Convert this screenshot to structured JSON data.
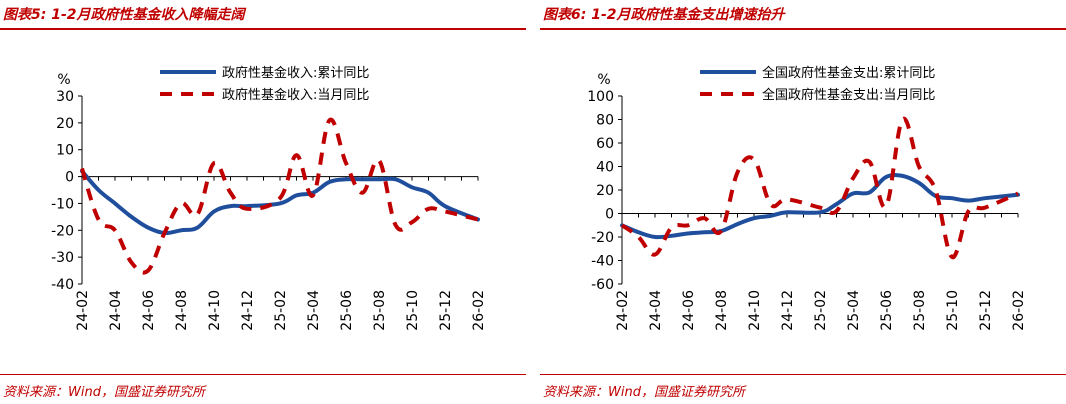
{
  "charts": [
    {
      "title": "图表5: 1-2月政府性基金收入降幅走阔",
      "source": "资料来源：Wind，国盛证券研究所"
    },
    {
      "title": "图表6: 1-2月政府性基金支出增速抬升",
      "source": "资料来源：Wind，国盛证券研究所"
    }
  ],
  "colors": {
    "accent": "#c00000",
    "series_cumulative": "#1f4e9c",
    "series_monthly": "#c00000"
  },
  "chart_data": [
    {
      "type": "line",
      "ylabel": "%",
      "ylim": [
        -40,
        30
      ],
      "yticks": [
        30,
        20,
        10,
        0,
        -10,
        -20,
        -30,
        -40
      ],
      "x": [
        "24-02",
        "24-03",
        "24-04",
        "24-05",
        "24-06",
        "24-07",
        "24-08",
        "24-09",
        "24-10",
        "24-11",
        "24-12",
        "25-01",
        "25-02",
        "25-03",
        "25-04",
        "25-05",
        "25-06",
        "25-07",
        "25-08",
        "25-09",
        "25-10",
        "25-11",
        "25-12",
        "26-01",
        "26-02"
      ],
      "xtick_labels": [
        "24-02",
        "24-04",
        "24-06",
        "24-08",
        "24-10",
        "24-12",
        "25-02",
        "25-04",
        "25-06",
        "25-08",
        "25-10",
        "25-12",
        "26-02"
      ],
      "legend": "top-right",
      "grid": false,
      "series": [
        {
          "name": "政府性基金收入:累计同比",
          "style": "solid",
          "values": [
            2,
            -5,
            -10,
            -15,
            -19,
            -21,
            -20,
            -19,
            -13,
            -11,
            -11,
            -10,
            -7,
            -6,
            -2,
            -1,
            -1,
            -1,
            -1,
            -4,
            -6,
            -11,
            -16
          ],
          "x": [
            "24-02",
            "24-03",
            "24-04",
            "24-05",
            "24-06",
            "24-07",
            "24-08",
            "24-09",
            "24-10",
            "24-11",
            "24-12",
            "25-02",
            "25-03",
            "25-04",
            "25-05",
            "25-06",
            "25-07",
            "25-08",
            "25-09",
            "25-10",
            "25-11",
            "25-12",
            "26-02"
          ]
        },
        {
          "name": "政府性基金收入:当月同比",
          "style": "dashed",
          "values": [
            3,
            -16,
            -20,
            -32,
            -35,
            -21,
            -10,
            -14,
            5,
            -6,
            -12,
            -8,
            8,
            -7,
            21,
            5,
            -6,
            6,
            -18,
            -17,
            -12,
            -13,
            -16
          ],
          "x": [
            "24-02",
            "24-03",
            "24-04",
            "24-05",
            "24-06",
            "24-07",
            "24-08",
            "24-09",
            "24-10",
            "24-11",
            "24-12",
            "25-02",
            "25-03",
            "25-04",
            "25-05",
            "25-06",
            "25-07",
            "25-08",
            "25-09",
            "25-10",
            "25-11",
            "25-12",
            "26-02"
          ]
        }
      ]
    },
    {
      "type": "line",
      "ylabel": "%",
      "ylim": [
        -60,
        100
      ],
      "yticks": [
        100,
        80,
        60,
        40,
        20,
        0,
        -20,
        -40,
        -60
      ],
      "x": [
        "24-02",
        "24-03",
        "24-04",
        "24-05",
        "24-06",
        "24-07",
        "24-08",
        "24-09",
        "24-10",
        "24-11",
        "24-12",
        "25-01",
        "25-02",
        "25-03",
        "25-04",
        "25-05",
        "25-06",
        "25-07",
        "25-08",
        "25-09",
        "25-10",
        "25-11",
        "25-12",
        "26-01",
        "26-02"
      ],
      "xtick_labels": [
        "24-02",
        "24-04",
        "24-06",
        "24-08",
        "24-10",
        "24-12",
        "25-02",
        "25-04",
        "25-06",
        "25-08",
        "25-10",
        "25-12",
        "26-02"
      ],
      "legend": "top-right",
      "grid": false,
      "series": [
        {
          "name": "全国政府性基金支出:累计同比",
          "style": "solid",
          "values": [
            -10,
            -16,
            -20,
            -19,
            -17,
            -16,
            -15,
            -9,
            -4,
            -2,
            1,
            1,
            8,
            17,
            18,
            31,
            32,
            26,
            15,
            13,
            11,
            13,
            16
          ],
          "x": [
            "24-02",
            "24-03",
            "24-04",
            "24-05",
            "24-06",
            "24-07",
            "24-08",
            "24-09",
            "24-10",
            "24-11",
            "24-12",
            "25-02",
            "25-03",
            "25-04",
            "25-05",
            "25-06",
            "25-07",
            "25-08",
            "25-09",
            "25-10",
            "25-11",
            "25-12",
            "26-02"
          ]
        },
        {
          "name": "全国政府性基金支出:当月同比",
          "style": "dashed",
          "values": [
            -10,
            -20,
            -35,
            -12,
            -10,
            -4,
            -15,
            35,
            46,
            8,
            12,
            5,
            2,
            30,
            44,
            6,
            80,
            40,
            20,
            -37,
            2,
            5,
            17
          ],
          "x": [
            "24-02",
            "24-03",
            "24-04",
            "24-05",
            "24-06",
            "24-07",
            "24-08",
            "24-09",
            "24-10",
            "24-11",
            "24-12",
            "25-02",
            "25-03",
            "25-04",
            "25-05",
            "25-06",
            "25-07",
            "25-08",
            "25-09",
            "25-10",
            "25-11",
            "25-12",
            "26-02"
          ]
        }
      ]
    }
  ]
}
